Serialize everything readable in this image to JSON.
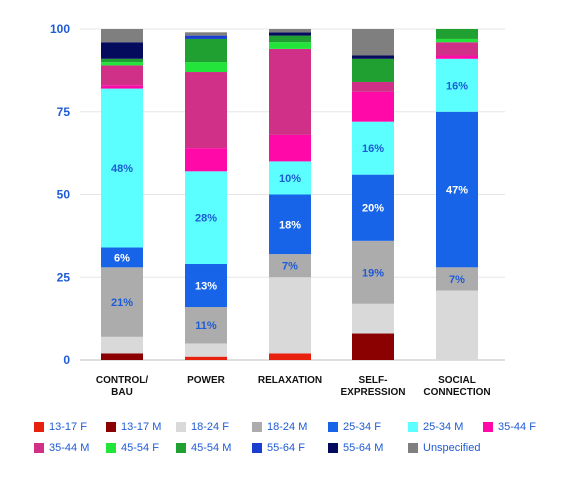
{
  "chart_data": {
    "type": "bar",
    "stacked": true,
    "ylim": [
      0,
      100
    ],
    "yticks": [
      0,
      25,
      50,
      75,
      100
    ],
    "grid": true,
    "legend_position": "bottom",
    "categories": [
      "CONTROL/\nBAU",
      "POWER",
      "RELAXATION",
      "SELF-\nEXPRESSION",
      "SOCIAL\nCONNECTION"
    ],
    "series": [
      {
        "name": "13-17 F",
        "color": "#e8210f",
        "values": [
          0,
          1,
          2,
          0,
          0
        ],
        "labels": [
          "",
          "",
          "",
          "",
          ""
        ]
      },
      {
        "name": "13-17 M",
        "color": "#8b0000",
        "values": [
          2,
          0,
          0,
          8,
          0
        ],
        "labels": [
          "",
          "",
          "",
          "",
          ""
        ]
      },
      {
        "name": "18-24 F",
        "color": "#d9d9d9",
        "values": [
          5,
          4,
          23,
          9,
          21
        ],
        "labels": [
          "",
          "",
          "",
          "",
          ""
        ]
      },
      {
        "name": "18-24 M",
        "color": "#acacac",
        "values": [
          21,
          11,
          7,
          19,
          7
        ],
        "labels": [
          "21%",
          "11%",
          "7%",
          "19%",
          "7%"
        ]
      },
      {
        "name": "25-34 F",
        "color": "#1764e8",
        "values": [
          6,
          13,
          18,
          20,
          47
        ],
        "labels": [
          "6%",
          "13%",
          "18%",
          "20%",
          "47%"
        ]
      },
      {
        "name": "25-34 M",
        "color": "#5cffff",
        "values": [
          48,
          28,
          10,
          16,
          16
        ],
        "labels": [
          "48%",
          "28%",
          "10%",
          "16%",
          "16%"
        ]
      },
      {
        "name": "35-44 F",
        "color": "#ff0aa8",
        "values": [
          1,
          7,
          8,
          9,
          1
        ],
        "labels": [
          "",
          "",
          "",
          "",
          ""
        ]
      },
      {
        "name": "35-44 M",
        "color": "#d03088",
        "values": [
          6,
          23,
          26,
          3,
          4
        ],
        "labels": [
          "",
          "",
          "",
          "",
          ""
        ]
      },
      {
        "name": "45-54 F",
        "color": "#22e43a",
        "values": [
          1,
          3,
          2,
          0,
          1
        ],
        "labels": [
          "",
          "",
          "",
          "",
          ""
        ]
      },
      {
        "name": "45-54 M",
        "color": "#20a030",
        "values": [
          1,
          7,
          2,
          7,
          3
        ],
        "labels": [
          "",
          "",
          "",
          "",
          ""
        ]
      },
      {
        "name": "55-64 F",
        "color": "#1a3ed0",
        "values": [
          0,
          1,
          0,
          0,
          0
        ],
        "labels": [
          "",
          "",
          "",
          "",
          ""
        ]
      },
      {
        "name": "55-64 M",
        "color": "#040a5c",
        "values": [
          5,
          0,
          1,
          1,
          0
        ],
        "labels": [
          "",
          "",
          "",
          "",
          ""
        ]
      },
      {
        "name": "Unspecified",
        "color": "#7f7f7f",
        "values": [
          4,
          1,
          1,
          8,
          0
        ],
        "labels": [
          "",
          "",
          "",
          "",
          ""
        ]
      }
    ]
  }
}
